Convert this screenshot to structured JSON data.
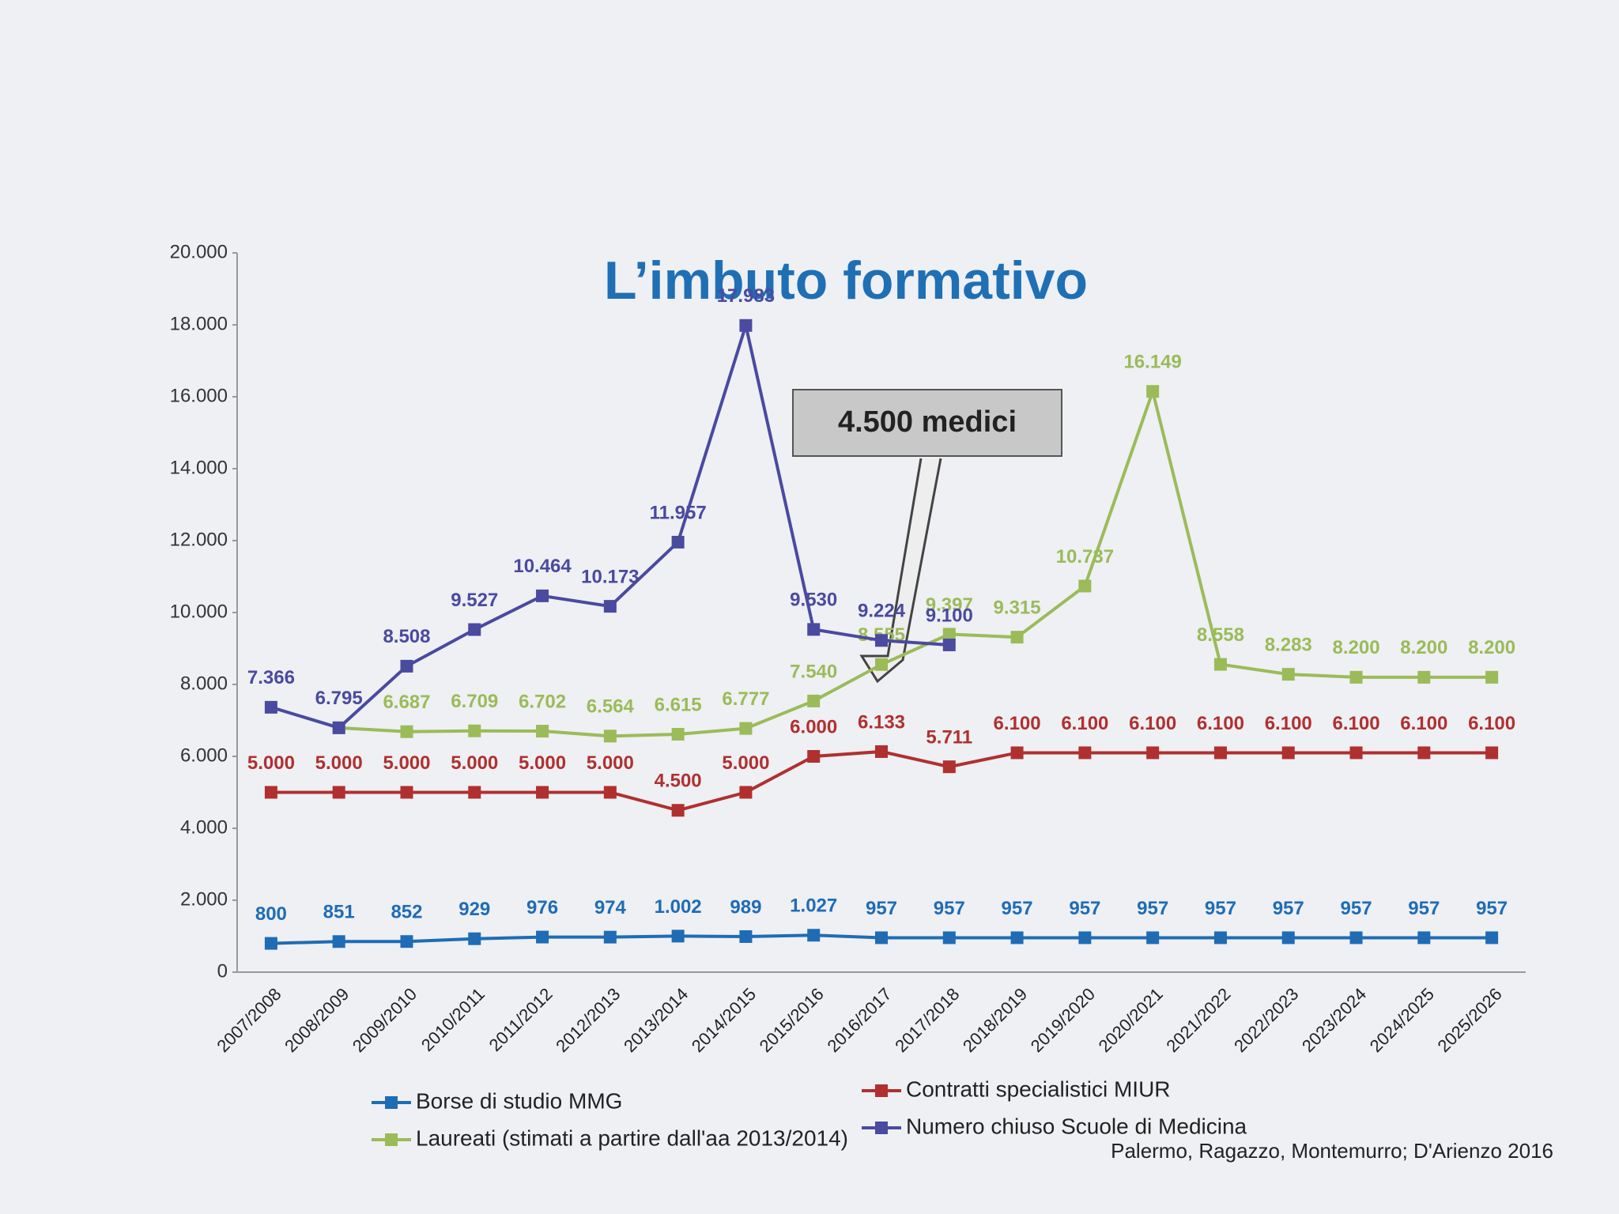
{
  "chart_data": {
    "type": "line",
    "title": "L’imbuto formativo",
    "annotation": "4.500 medici",
    "source": "Palermo, Ragazzo, Montemurro; D'Arienzo 2016",
    "categories": [
      "2007/2008",
      "2008/2009",
      "2009/2010",
      "2010/2011",
      "2011/2012",
      "2012/2013",
      "2013/2014",
      "2014/2015",
      "2015/2016",
      "2016/2017",
      "2017/2018",
      "2018/2019",
      "2019/2020",
      "2020/2021",
      "2021/2022",
      "2022/2023",
      "2023/2024",
      "2024/2025",
      "2025/2026"
    ],
    "ylim": [
      0,
      20000
    ],
    "yticks": [
      0,
      {
        "value": 2000,
        "label": "2.000"
      },
      {
        "value": 4000,
        "label": "4.000"
      },
      {
        "value": 6000,
        "label": "6.000"
      },
      {
        "value": 8000,
        "label": "8.000"
      },
      {
        "value": 10000,
        "label": "10.000"
      },
      {
        "value": 12000,
        "label": "12.000"
      },
      {
        "value": 14000,
        "label": "14.000"
      },
      {
        "value": 16000,
        "label": "16.000"
      },
      {
        "value": 18000,
        "label": "18.000"
      },
      {
        "value": 20000,
        "label": "20.000"
      }
    ],
    "grid": false,
    "series": [
      {
        "name": "Borse di studio MMG",
        "color": "#1f6cb5",
        "values": [
          800,
          851,
          852,
          929,
          976,
          974,
          1002,
          989,
          1027,
          957,
          957,
          957,
          957,
          957,
          957,
          957,
          957,
          957,
          957
        ],
        "value_labels": [
          "800",
          "851",
          "852",
          "929",
          "976",
          "974",
          "1.002",
          "989",
          "1.027",
          "957",
          "957",
          "957",
          "957",
          "957",
          "957",
          "957",
          "957",
          "957",
          "957"
        ]
      },
      {
        "name": "Contratti specialistici MIUR",
        "color": "#b03030",
        "values": [
          5000,
          5000,
          5000,
          5000,
          5000,
          5000,
          4500,
          5000,
          6000,
          6133,
          5711,
          6100,
          6100,
          6100,
          6100,
          6100,
          6100,
          6100,
          6100
        ],
        "value_labels": [
          "5.000",
          "5.000",
          "5.000",
          "5.000",
          "5.000",
          "5.000",
          "4.500",
          "5.000",
          "6.000",
          "6.133",
          "5.711",
          "6.100",
          "6.100",
          "6.100",
          "6.100",
          "6.100",
          "6.100",
          "6.100",
          "6.100"
        ]
      },
      {
        "name": "Laureati (stimati a partire dall'aa 2013/2014)",
        "color": "#9bbb59",
        "values": [
          null,
          6795,
          6687,
          6709,
          6702,
          6564,
          6615,
          6777,
          7540,
          8555,
          9397,
          9315,
          10737,
          16149,
          8558,
          8283,
          8200,
          8200,
          8200
        ],
        "value_labels": [
          null,
          null,
          "6.687",
          "6.709",
          "6.702",
          "6.564",
          "6.615",
          "6.777",
          "7.540",
          "8.555",
          "9.397",
          "9.315",
          "10.737",
          "16.149",
          "8.558",
          "8.283",
          "8.200",
          "8.200",
          "8.200"
        ]
      },
      {
        "name": "Numero chiuso Scuole di Medicina",
        "color": "#4a4aa0",
        "values": [
          7366,
          6795,
          8508,
          9527,
          10464,
          10173,
          11957,
          17983,
          9530,
          9224,
          9100,
          null,
          null,
          null,
          null,
          null,
          null,
          null,
          null
        ],
        "value_labels": [
          "7.366",
          "6.795",
          "8.508",
          "9.527",
          "10.464",
          "10.173",
          "11.957",
          "17.983",
          "9.530",
          "9.224",
          "9.100",
          null,
          null,
          null,
          null,
          null,
          null,
          null,
          null
        ]
      }
    ]
  }
}
